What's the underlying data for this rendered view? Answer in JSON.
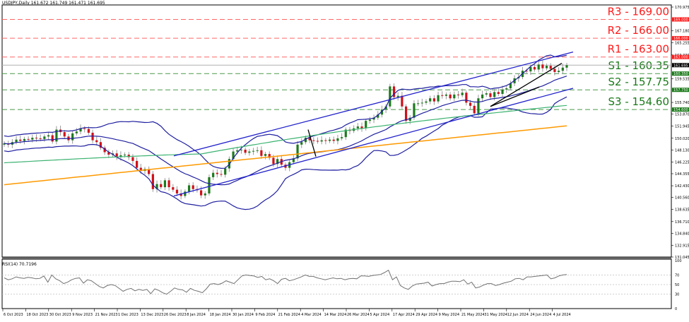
{
  "window": {
    "symbol_header": "USDJPY,Daily  161.672 161.749 161.471 161.695",
    "rsi_header": "RSI(14) 70.7196"
  },
  "chart_data": [
    {
      "type": "candlestick",
      "title": "USDJPY,Daily",
      "ohlc_last": {
        "open": 161.672,
        "high": 161.749,
        "low": 161.471,
        "close": 161.695
      },
      "current_price": 161.695,
      "ylim": [
        131.045,
        170.975
      ],
      "y_ticks": [
        170.975,
        167.18,
        165.255,
        163.33,
        159.535,
        155.74,
        153.87,
        151.945,
        150.02,
        148.13,
        146.225,
        144.355,
        142.43,
        140.56,
        138.635,
        136.71,
        134.84,
        132.915,
        131.045
      ],
      "x_ticks": [
        "6 Oct 2023",
        "18 Oct 2023",
        "30 Oct 2023",
        "9 Nov 2023",
        "21 Nov 2023",
        "1 Dec 2023",
        "13 Dec 2023",
        "26 Dec 2023",
        "8 Jan 2024",
        "18 Jan 2024",
        "30 Jan 2024",
        "9 Feb 2024",
        "21 Feb 2024",
        "4 Mar 2024",
        "14 Mar 2024",
        "26 Mar 2024",
        "5 Apr 2024",
        "17 Apr 2024",
        "29 Apr 2024",
        "9 May 2024",
        "21 May 2024",
        "31 May 2024",
        "12 Jun 2024",
        "24 Jun 2024",
        "4 Jul 2024"
      ],
      "levels": [
        {
          "name": "R3",
          "label": "R3 - 169.00",
          "value": 169.0,
          "tag": "169.000",
          "color": "#ff0000",
          "kind": "resistance"
        },
        {
          "name": "R2",
          "label": "R2 - 166.00",
          "value": 166.0,
          "tag": "166.000",
          "color": "#ff0000",
          "kind": "resistance"
        },
        {
          "name": "R1",
          "label": "R1 - 163.00",
          "value": 163.0,
          "tag": "163.000",
          "color": "#ff0000",
          "kind": "resistance"
        },
        {
          "name": "S1",
          "label": "S1 - 160.35",
          "value": 160.35,
          "tag": "160.350",
          "color": "#1a7a1a",
          "kind": "support"
        },
        {
          "name": "S2",
          "label": "S2 - 157.75",
          "value": 157.75,
          "tag": "157.750",
          "color": "#1a7a1a",
          "kind": "support"
        },
        {
          "name": "S3",
          "label": "S3 - 154.60",
          "value": 154.6,
          "tag": "154.600",
          "color": "#1a7a1a",
          "kind": "support"
        }
      ],
      "price_path_close": [
        149.2,
        149.0,
        149.4,
        149.8,
        149.6,
        149.9,
        149.8,
        150.1,
        150.0,
        149.9,
        150.3,
        150.5,
        149.5,
        151.4,
        151.0,
        150.3,
        149.7,
        150.8,
        151.1,
        151.6,
        151.5,
        150.9,
        149.7,
        149.4,
        148.5,
        147.8,
        147.4,
        147.6,
        147.0,
        147.3,
        147.4,
        147.0,
        146.4,
        145.3,
        144.8,
        145.1,
        144.3,
        141.9,
        142.7,
        142.2,
        143.3,
        142.2,
        141.8,
        141.2,
        140.8,
        141.5,
        142.5,
        141.9,
        141.7,
        140.9,
        141.2,
        143.8,
        144.5,
        144.3,
        144.2,
        145.2,
        146.7,
        147.9,
        148.1,
        148.2,
        147.7,
        147.9,
        148.0,
        148.1,
        147.2,
        147.5,
        146.9,
        145.9,
        146.7,
        145.8,
        145.3,
        146.2,
        146.8,
        149.0,
        149.4,
        150.1,
        149.7,
        149.6,
        149.5,
        149.7,
        149.6,
        149.8,
        149.6,
        150.0,
        150.2,
        151.4,
        151.2,
        151.6,
        151.9,
        151.6,
        152.8,
        153.0,
        153.3,
        153.8,
        154.6,
        155.1,
        158.3,
        156.6,
        156.8,
        155.1,
        152.8,
        153.3,
        155.6,
        155.6,
        155.7,
        155.9,
        156.4,
        155.9,
        156.9,
        156.8,
        157.0,
        156.4,
        157.0,
        156.9,
        157.3,
        155.7,
        155.2,
        154.0,
        156.4,
        157.0,
        157.2,
        156.6,
        157.4,
        157.1,
        157.8,
        158.0,
        158.8,
        159.6,
        159.8,
        160.8,
        160.7,
        161.4,
        161.0,
        161.8,
        161.2,
        161.6,
        161.1,
        160.6,
        160.8,
        161.3,
        161.695
      ],
      "series": [
        {
          "name": "Bollinger upper",
          "color": "#1f1fa0"
        },
        {
          "name": "Bollinger middle",
          "color": "#1f1fa0"
        },
        {
          "name": "Bollinger lower",
          "color": "#1f1fa0"
        },
        {
          "name": "MA 100 (green)",
          "color": "#3cb371"
        },
        {
          "name": "MA 200 (orange)",
          "color": "#ff9900"
        },
        {
          "name": "Upward channel",
          "color": "#2222cc"
        },
        {
          "name": "Trendlines (black)",
          "color": "#000000"
        }
      ],
      "xlabel": "",
      "ylabel": ""
    },
    {
      "type": "line",
      "title": "RSI(14)",
      "last_value": 70.7196,
      "ylim": [
        0,
        100
      ],
      "y_ticks": [
        100,
        70,
        50,
        30,
        0
      ],
      "levels": [
        70,
        50,
        30
      ],
      "values": [
        64,
        60,
        62,
        66,
        64,
        63,
        65,
        64,
        62,
        63,
        68,
        55,
        70,
        62,
        58,
        52,
        55,
        60,
        63,
        64,
        53,
        60,
        58,
        52,
        46,
        43,
        48,
        50,
        48,
        42,
        36,
        40,
        42,
        37,
        40,
        38,
        40,
        31,
        41,
        38,
        33,
        30,
        36,
        43,
        40,
        39,
        34,
        42,
        38,
        36,
        33,
        41,
        51,
        52,
        50,
        53,
        58,
        55,
        52,
        60,
        68,
        70,
        69,
        68,
        65,
        67,
        60,
        62,
        58,
        52,
        61,
        63,
        58,
        60,
        63,
        66,
        70,
        67,
        67,
        64,
        62,
        60,
        62,
        64,
        62,
        63,
        60,
        62,
        63,
        62,
        68,
        68,
        67,
        69,
        70,
        71,
        75,
        80,
        60,
        66,
        48,
        43,
        40,
        47,
        51,
        52,
        53,
        55,
        47,
        50,
        52,
        52,
        55,
        57,
        57,
        56,
        60,
        51,
        55,
        43,
        45,
        49,
        52,
        52,
        48,
        50,
        53,
        55,
        57,
        62,
        63,
        60,
        66,
        66,
        67,
        68,
        69,
        70,
        62,
        64,
        68,
        70,
        71
      ],
      "xlabel": "",
      "ylabel": ""
    }
  ]
}
